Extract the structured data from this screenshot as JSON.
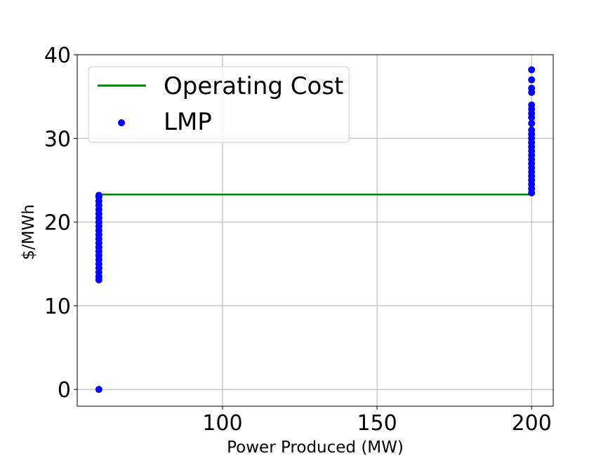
{
  "chart_data": {
    "type": "scatter",
    "xlabel": "Power Produced (MW)",
    "ylabel": "$/MWh",
    "xlim": [
      53,
      207
    ],
    "ylim": [
      -2,
      40
    ],
    "x_ticks": [
      100,
      150,
      200
    ],
    "y_ticks": [
      0,
      10,
      20,
      30,
      40
    ],
    "grid": true,
    "legend_position": "upper-left",
    "series": [
      {
        "name": "Operating Cost",
        "type": "line",
        "color": "#008000",
        "x": [
          60,
          200
        ],
        "y": [
          23.3,
          23.3
        ]
      },
      {
        "name": "LMP",
        "type": "scatter",
        "color": "#0000ff",
        "points": [
          [
            60,
            0.0
          ],
          [
            60,
            13.1
          ],
          [
            60,
            13.5
          ],
          [
            60,
            14.0
          ],
          [
            60,
            14.5
          ],
          [
            60,
            15.0
          ],
          [
            60,
            15.5
          ],
          [
            60,
            16.0
          ],
          [
            60,
            16.5
          ],
          [
            60,
            17.0
          ],
          [
            60,
            17.5
          ],
          [
            60,
            18.0
          ],
          [
            60,
            18.5
          ],
          [
            60,
            19.0
          ],
          [
            60,
            19.5
          ],
          [
            60,
            20.0
          ],
          [
            60,
            20.5
          ],
          [
            60,
            21.0
          ],
          [
            60,
            21.5
          ],
          [
            60,
            22.0
          ],
          [
            60,
            22.5
          ],
          [
            60,
            23.0
          ],
          [
            60,
            23.2
          ],
          [
            200,
            23.5
          ],
          [
            200,
            24.0
          ],
          [
            200,
            24.5
          ],
          [
            200,
            25.0
          ],
          [
            200,
            25.5
          ],
          [
            200,
            26.0
          ],
          [
            200,
            26.5
          ],
          [
            200,
            27.0
          ],
          [
            200,
            27.5
          ],
          [
            200,
            28.0
          ],
          [
            200,
            28.5
          ],
          [
            200,
            29.0
          ],
          [
            200,
            29.5
          ],
          [
            200,
            30.0
          ],
          [
            200,
            30.5
          ],
          [
            200,
            31.0
          ],
          [
            200,
            31.8
          ],
          [
            200,
            32.5
          ],
          [
            200,
            33.0
          ],
          [
            200,
            33.5
          ],
          [
            200,
            34.0
          ],
          [
            200,
            35.5
          ],
          [
            200,
            36.0
          ],
          [
            200,
            37.0
          ],
          [
            200,
            38.2
          ]
        ]
      }
    ]
  }
}
